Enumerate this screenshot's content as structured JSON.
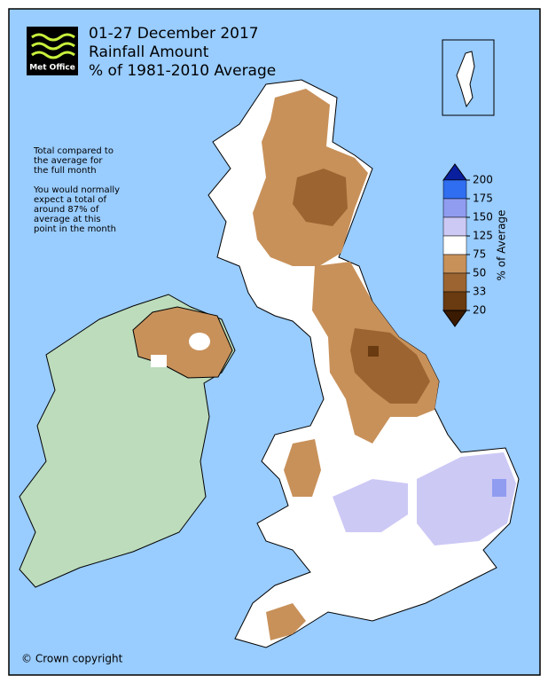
{
  "header": {
    "logo_text": "Met Office",
    "lines": [
      "01-27 December 2017",
      "Rainfall Amount",
      "% of 1981-2010 Average"
    ]
  },
  "note": {
    "lines": [
      "Total compared to",
      "the average for",
      "the full month",
      "You would normally",
      "expect a total of",
      "around 87% of",
      "average at this",
      "point in the month"
    ]
  },
  "legend": {
    "title": "% of Average",
    "ticks": [
      200,
      175,
      150,
      125,
      75,
      50,
      33,
      20
    ],
    "colors": [
      "#0a1f9e",
      "#2f6ef0",
      "#8f9cf0",
      "#cdc9f5",
      "#ffffff",
      "#c8915a",
      "#9b6431",
      "#6a3a10",
      "#3a1a00"
    ]
  },
  "copyright": "© Crown copyright"
}
